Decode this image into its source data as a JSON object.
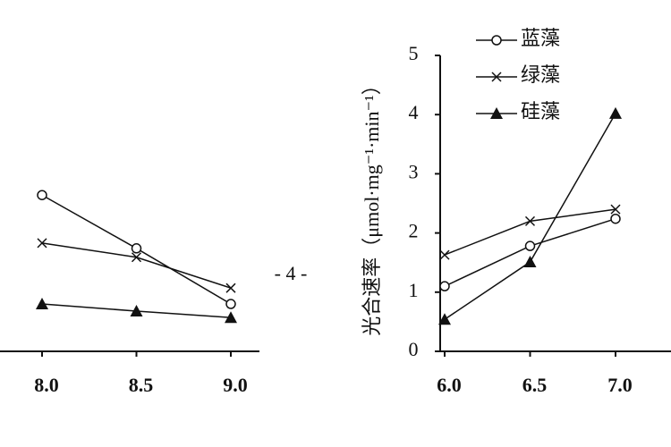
{
  "page_number": "- 4 -",
  "chart_data": [
    {
      "type": "line",
      "categories": [
        "8.0",
        "8.5",
        "9.0"
      ],
      "ylim": [
        0,
        5
      ],
      "series": [
        {
          "marker": "circle",
          "color": "#111111",
          "values": [
            2.64,
            1.74,
            0.8
          ]
        },
        {
          "marker": "cross",
          "color": "#111111",
          "values": [
            1.83,
            1.59,
            1.07
          ]
        },
        {
          "marker": "triangle",
          "color": "#111111",
          "values": [
            0.8,
            0.68,
            0.57
          ]
        }
      ]
    },
    {
      "type": "line",
      "y_label": "光合速率（μmol·mg⁻¹·min⁻¹）",
      "categories": [
        "6.0",
        "6.5",
        "7.0"
      ],
      "ylim": [
        0,
        5
      ],
      "yticks": [
        0,
        1,
        2,
        3,
        4,
        5
      ],
      "series": [
        {
          "name": "蓝藻",
          "marker": "circle",
          "color": "#111111",
          "values": [
            1.1,
            1.78,
            2.24
          ]
        },
        {
          "name": "绿藻",
          "marker": "cross",
          "color": "#111111",
          "values": [
            1.63,
            2.2,
            2.4
          ]
        },
        {
          "name": "硅藻",
          "marker": "triangle",
          "color": "#111111",
          "values": [
            0.54,
            1.51,
            4.02
          ]
        }
      ]
    }
  ]
}
